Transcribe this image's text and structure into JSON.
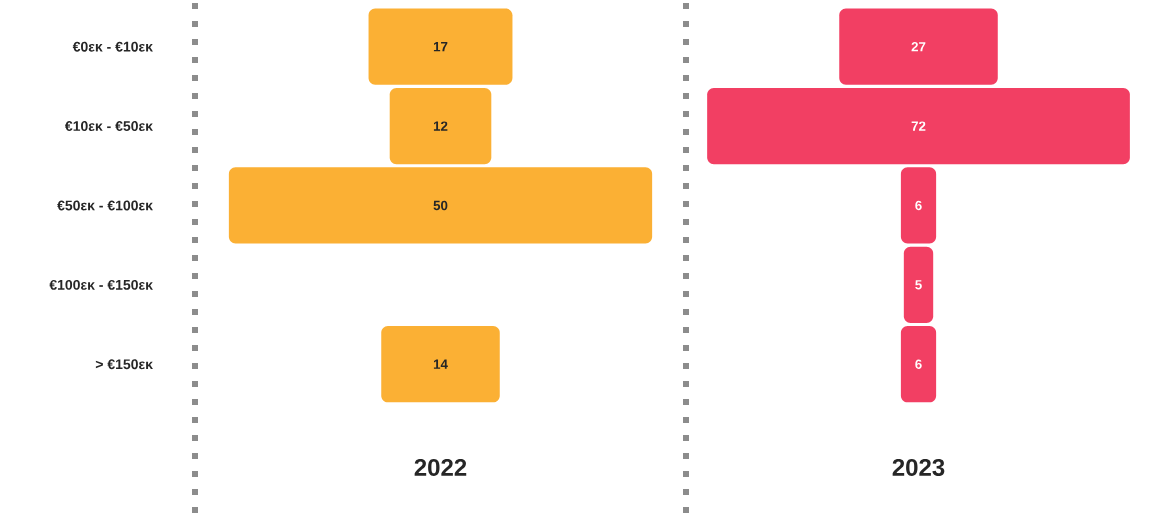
{
  "chart_data": [
    {
      "type": "other",
      "title": "2022",
      "categories": [
        "€0εκ - €10εκ",
        "€10εκ - €50εκ",
        "€50εκ - €100εκ",
        "€100εκ - €150εκ",
        "> €150εκ"
      ],
      "values": [
        17,
        12,
        50,
        null,
        14
      ],
      "color": "#fbb034",
      "data_labels": true
    },
    {
      "type": "other",
      "title": "2023",
      "values": [
        27,
        72,
        6,
        5,
        6
      ],
      "color": "#f23f63",
      "data_labels": true
    }
  ]
}
